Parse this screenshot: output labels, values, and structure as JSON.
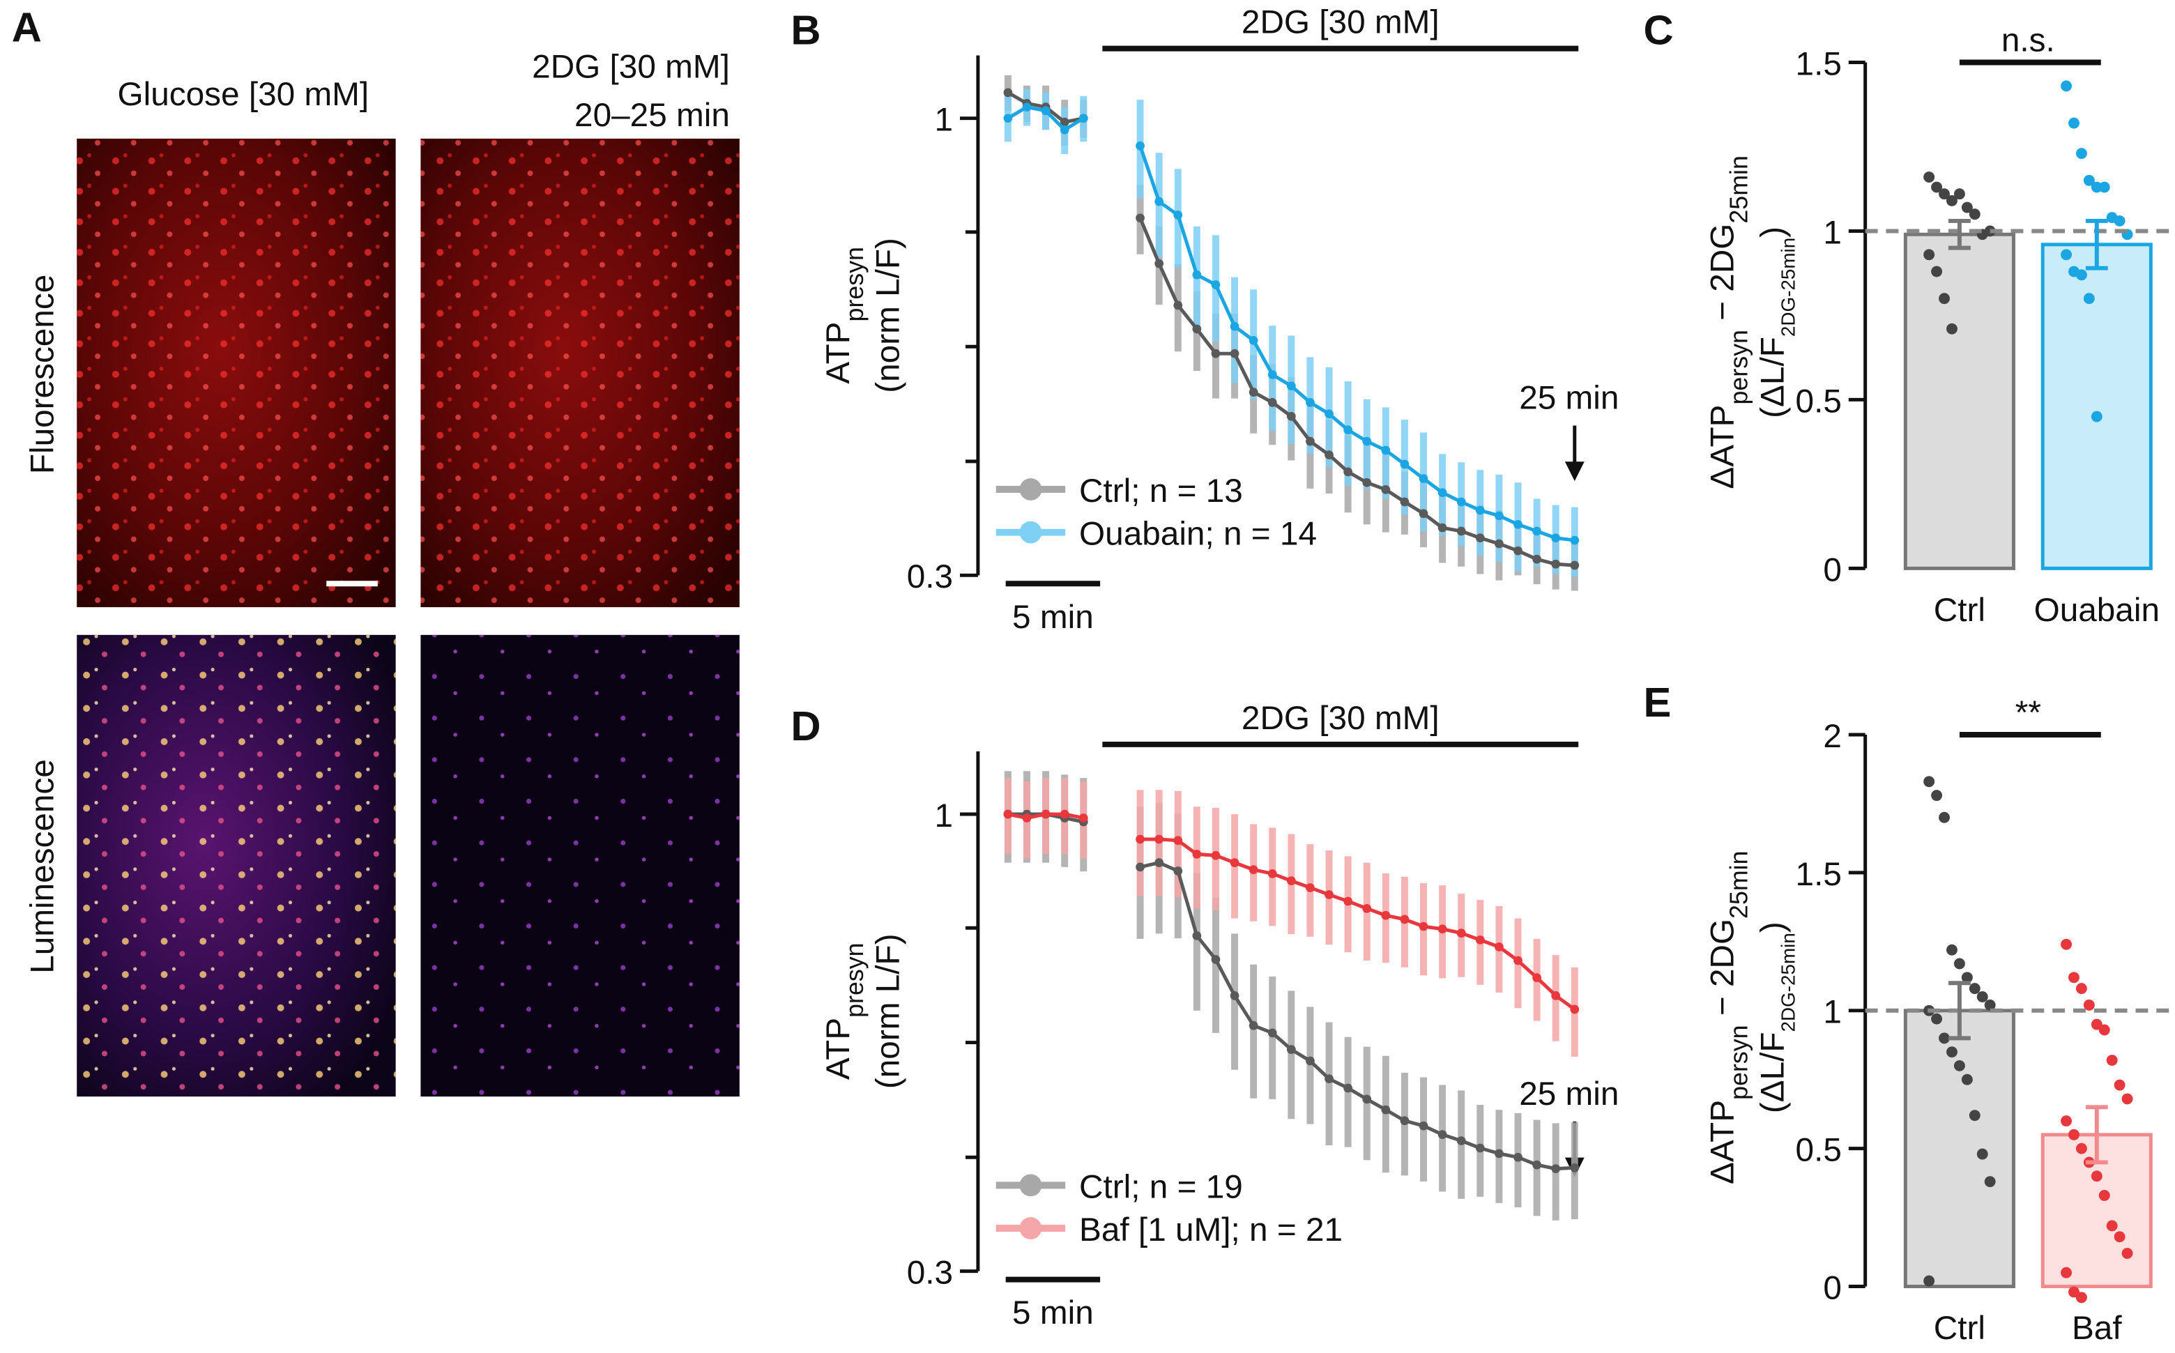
{
  "panel_a": {
    "panel": "A",
    "col1": "Glucose [30 mM]",
    "col2_line1": "2DG [30 mM]",
    "col2_line2": "20–25 min",
    "row1": "Fluorescence",
    "row2": "Luminescence"
  },
  "chart_data": [
    {
      "type": "line",
      "panel": "B",
      "log_y": true,
      "ylabel": [
        [
          {
            "text": "ATP"
          },
          {
            "text": "presyn",
            "sub": true
          }
        ],
        [
          {
            "text": "(norm L/F)"
          }
        ]
      ],
      "ylim": [
        0.3,
        1.18
      ],
      "yticks": [
        0.3,
        1
      ],
      "minor_yticks": [
        0.405,
        0.548,
        0.741
      ],
      "xlim": [
        -6,
        26
      ],
      "treatment": {
        "label": "2DG [30 mM]",
        "x": [
          0,
          25.2
        ]
      },
      "annotation": {
        "label": "25 min",
        "x": 25
      },
      "scale_bar": {
        "label": "5 min",
        "length": 5
      },
      "x": [
        -5,
        -4,
        -3,
        -2,
        -1,
        0,
        1,
        2,
        3,
        4,
        5,
        6,
        7,
        8,
        9,
        10,
        11,
        12,
        13,
        14,
        15,
        16,
        17,
        18,
        19,
        20,
        21,
        22,
        23,
        24,
        25
      ],
      "series": [
        {
          "name": "Ctrl; n = 13",
          "color": "#5a5a5a",
          "error_color": "#a8a8a8",
          "values": [
            1.07,
            1.04,
            1.03,
            0.99,
            1.0,
            null,
            null,
            0.769,
            0.682,
            0.611,
            0.574,
            0.538,
            0.538,
            0.486,
            0.473,
            0.456,
            0.427,
            0.412,
            0.394,
            0.383,
            0.376,
            0.364,
            0.353,
            0.34,
            0.337,
            0.331,
            0.326,
            0.32,
            0.313,
            0.309,
            0.308
          ],
          "errors": [
            0.05,
            0.05,
            0.06,
            0.06,
            0.05,
            null,
            null,
            0.07,
            0.07,
            0.07,
            0.06,
            0.06,
            0.06,
            0.05,
            0.05,
            0.05,
            0.05,
            0.04,
            0.04,
            0.04,
            0.04,
            0.03,
            0.03,
            0.03,
            0.03,
            0.03,
            0.03,
            0.02,
            0.02,
            0.02,
            0.02
          ]
        },
        {
          "name": "Ouabain; n = 14",
          "color": "#1ba6e3",
          "error_color": "#7ed0f5",
          "values": [
            1.0,
            1.03,
            1.02,
            0.97,
            1.0,
            null,
            null,
            0.93,
            0.803,
            0.775,
            0.662,
            0.645,
            0.578,
            0.557,
            0.509,
            0.494,
            0.473,
            0.459,
            0.44,
            0.427,
            0.417,
            0.402,
            0.387,
            0.373,
            0.364,
            0.356,
            0.351,
            0.343,
            0.337,
            0.331,
            0.329
          ],
          "errors": [
            0.06,
            0.05,
            0.05,
            0.06,
            0.06,
            null,
            null,
            0.12,
            0.11,
            0.1,
            0.09,
            0.09,
            0.08,
            0.08,
            0.07,
            0.07,
            0.06,
            0.06,
            0.06,
            0.05,
            0.05,
            0.05,
            0.05,
            0.04,
            0.04,
            0.04,
            0.04,
            0.04,
            0.03,
            0.03,
            0.03
          ]
        }
      ]
    },
    {
      "type": "bar",
      "panel": "C",
      "ylabel": [
        [
          {
            "text": "ΔATP"
          },
          {
            "text": "persyn",
            "sub": true
          },
          {
            "text": " − 2DG"
          },
          {
            "text": "25min",
            "sub": true
          }
        ],
        [
          {
            "text": "(ΔL/F"
          },
          {
            "text": "2DG-25min",
            "sub": true
          },
          {
            "text": ")"
          }
        ]
      ],
      "ylim": [
        0,
        1.5
      ],
      "yticks": [
        0,
        0.5,
        1,
        1.5
      ],
      "reference_line": 1,
      "significance": "n.s.",
      "categories": [
        "Ctrl",
        "Ouabain"
      ],
      "values": [
        0.99,
        0.96
      ],
      "errors": [
        0.04,
        0.07
      ],
      "colors": [
        "#dcdcdc",
        "#c9ecfb"
      ],
      "edge_colors": [
        "#777777",
        "#1ba6e3"
      ],
      "point_colors": [
        "#444444",
        "#1ba6e3"
      ],
      "points": [
        [
          1.16,
          1.13,
          1.11,
          1.09,
          1.11,
          1.07,
          1.05,
          0.99,
          1.0,
          0.93,
          0.88,
          0.8,
          0.71
        ],
        [
          1.43,
          1.32,
          1.23,
          1.15,
          1.13,
          1.13,
          1.04,
          1.03,
          0.99,
          0.93,
          0.88,
          0.87,
          0.8,
          0.45
        ]
      ]
    },
    {
      "type": "line",
      "panel": "D",
      "log_y": true,
      "ylabel": [
        [
          {
            "text": "ATP"
          },
          {
            "text": "presyn",
            "sub": true
          }
        ],
        [
          {
            "text": "(norm L/F)"
          }
        ]
      ],
      "ylim": [
        0.3,
        1.18
      ],
      "yticks": [
        0.3,
        1
      ],
      "minor_yticks": [
        0.405,
        0.548,
        0.741
      ],
      "xlim": [
        -6,
        26
      ],
      "treatment": {
        "label": "2DG [30 mM]",
        "x": [
          0,
          25.2
        ]
      },
      "annotation": {
        "label": "25 min",
        "x": 25
      },
      "scale_bar": {
        "label": "5 min",
        "length": 5
      },
      "x": [
        -5,
        -4,
        -3,
        -2,
        -1,
        0,
        1,
        2,
        3,
        4,
        5,
        6,
        7,
        8,
        9,
        10,
        11,
        12,
        13,
        14,
        15,
        16,
        17,
        18,
        19,
        20,
        21,
        22,
        23,
        24,
        25
      ],
      "series": [
        {
          "name": "Ctrl; n = 19",
          "color": "#5a5a5a",
          "error_color": "#a8a8a8",
          "values": [
            1.0,
            1.0,
            1.0,
            0.99,
            0.98,
            null,
            null,
            0.87,
            0.88,
            0.861,
            0.726,
            0.682,
            0.62,
            0.573,
            0.562,
            0.538,
            0.522,
            0.498,
            0.486,
            0.472,
            0.459,
            0.446,
            0.44,
            0.43,
            0.423,
            0.415,
            0.409,
            0.405,
            0.397,
            0.393,
            0.394
          ],
          "errors": [
            0.12,
            0.12,
            0.12,
            0.12,
            0.12,
            null,
            null,
            0.15,
            0.15,
            0.14,
            0.13,
            0.12,
            0.11,
            0.1,
            0.09,
            0.09,
            0.08,
            0.08,
            0.07,
            0.07,
            0.07,
            0.06,
            0.06,
            0.06,
            0.06,
            0.05,
            0.05,
            0.05,
            0.05,
            0.05,
            0.05
          ]
        },
        {
          "name": "Baf [1 uM]; n = 21",
          "color": "#e8383d",
          "error_color": "#f5a6a8",
          "values": [
            1.0,
            0.99,
            1.0,
            1.0,
            0.99,
            null,
            null,
            0.936,
            0.936,
            0.933,
            0.9,
            0.897,
            0.88,
            0.864,
            0.855,
            0.839,
            0.824,
            0.809,
            0.795,
            0.78,
            0.766,
            0.758,
            0.744,
            0.739,
            0.731,
            0.718,
            0.705,
            0.68,
            0.65,
            0.62,
            0.598
          ],
          "errors": [
            0.1,
            0.1,
            0.1,
            0.1,
            0.1,
            null,
            null,
            0.13,
            0.13,
            0.13,
            0.12,
            0.12,
            0.12,
            0.11,
            0.11,
            0.11,
            0.1,
            0.1,
            0.1,
            0.1,
            0.09,
            0.09,
            0.09,
            0.09,
            0.08,
            0.08,
            0.08,
            0.08,
            0.07,
            0.07,
            0.07
          ]
        }
      ]
    },
    {
      "type": "bar",
      "panel": "E",
      "ylabel": [
        [
          {
            "text": "ΔATP"
          },
          {
            "text": "persyn",
            "sub": true
          },
          {
            "text": " − 2DG"
          },
          {
            "text": "25min",
            "sub": true
          }
        ],
        [
          {
            "text": "(ΔL/F"
          },
          {
            "text": "2DG-25min",
            "sub": true
          },
          {
            "text": ")"
          }
        ]
      ],
      "ylim": [
        0,
        2
      ],
      "yticks": [
        0,
        0.5,
        1,
        1.5,
        2
      ],
      "reference_line": 1,
      "significance": "**",
      "categories": [
        "Ctrl",
        "Baf"
      ],
      "values": [
        1.0,
        0.55
      ],
      "errors": [
        0.1,
        0.1
      ],
      "colors": [
        "#dcdcdc",
        "#fde0e0"
      ],
      "edge_colors": [
        "#777777",
        "#f08a8c"
      ],
      "point_colors": [
        "#444444",
        "#e8383d"
      ],
      "points": [
        [
          1.83,
          1.78,
          1.7,
          1.22,
          1.17,
          1.12,
          1.08,
          1.05,
          1.02,
          1.0,
          0.97,
          0.9,
          0.85,
          0.8,
          0.75,
          0.62,
          0.48,
          0.38,
          0.02
        ],
        [
          1.24,
          1.12,
          1.08,
          1.02,
          0.95,
          0.93,
          0.82,
          0.73,
          0.68,
          0.6,
          0.55,
          0.5,
          0.45,
          0.4,
          0.33,
          0.22,
          0.18,
          0.12,
          0.05,
          -0.02,
          -0.04
        ]
      ]
    }
  ]
}
